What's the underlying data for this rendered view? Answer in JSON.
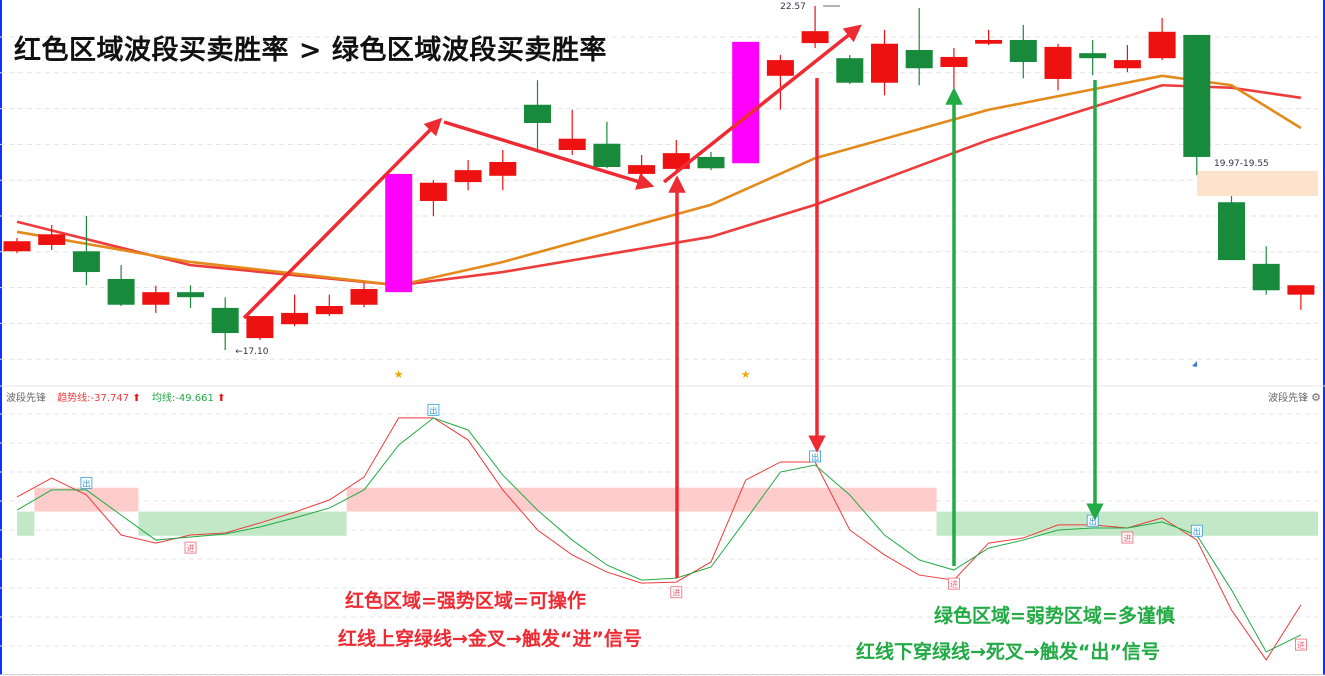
{
  "title": "红色区域波段买卖胜率 > 绿色区域波段买卖胜率",
  "colors": {
    "up": "#ee1111",
    "down": "#178a3c",
    "highlight": "#ff00ff",
    "ma_red": "#ee3b3b",
    "ma_orange": "#e38a1a",
    "zone_strong": "#ffcccc",
    "zone_weak": "#c2e8c8",
    "signal_out": "#3399dd",
    "signal_in": "#ee6677",
    "arrow_red": "#ee2a33",
    "arrow_green": "#22aa44",
    "range_box": "#fde3cc"
  },
  "chart_data": [
    {
      "type": "candlestick",
      "title": "",
      "price_labels": {
        "high": "22.57",
        "low": "17.10",
        "range": "19.97-19.55"
      },
      "candles": [
        {
          "o": 18.67,
          "h": 18.88,
          "l": 18.64,
          "c": 18.83
        },
        {
          "o": 18.77,
          "h": 19.09,
          "l": 18.69,
          "c": 18.94
        },
        {
          "o": 18.67,
          "h": 19.23,
          "l": 18.13,
          "c": 18.34
        },
        {
          "o": 18.23,
          "h": 18.45,
          "l": 17.8,
          "c": 17.82
        },
        {
          "o": 17.82,
          "h": 18.12,
          "l": 17.69,
          "c": 18.02
        },
        {
          "o": 18.02,
          "h": 18.13,
          "l": 17.77,
          "c": 17.94
        },
        {
          "o": 17.77,
          "h": 17.94,
          "l": 17.1,
          "c": 17.37
        },
        {
          "o": 17.29,
          "h": 17.64,
          "l": 17.26,
          "c": 17.64
        },
        {
          "o": 17.51,
          "h": 17.98,
          "l": 17.48,
          "c": 17.69
        },
        {
          "o": 17.67,
          "h": 17.98,
          "l": 17.64,
          "c": 17.8
        },
        {
          "o": 17.82,
          "h": 18.17,
          "l": 17.78,
          "c": 18.07
        },
        {
          "o": 18.02,
          "h": 19.9,
          "l": 18.02,
          "c": 19.9,
          "highlight": true
        },
        {
          "o": 19.47,
          "h": 19.8,
          "l": 19.23,
          "c": 19.76
        },
        {
          "o": 19.77,
          "h": 20.12,
          "l": 19.64,
          "c": 19.96
        },
        {
          "o": 19.87,
          "h": 20.28,
          "l": 19.64,
          "c": 20.09
        },
        {
          "o": 21.0,
          "h": 21.39,
          "l": 20.28,
          "c": 20.71
        },
        {
          "o": 20.28,
          "h": 20.92,
          "l": 20.2,
          "c": 20.46
        },
        {
          "o": 20.38,
          "h": 20.73,
          "l": 19.99,
          "c": 20.01
        },
        {
          "o": 19.9,
          "h": 20.2,
          "l": 19.84,
          "c": 20.04
        },
        {
          "o": 19.98,
          "h": 20.44,
          "l": 19.93,
          "c": 20.23
        },
        {
          "o": 20.17,
          "h": 20.25,
          "l": 19.96,
          "c": 19.99
        },
        {
          "o": 20.07,
          "h": 22.0,
          "l": 20.07,
          "c": 22.0,
          "highlight": true
        },
        {
          "o": 21.46,
          "h": 21.79,
          "l": 20.92,
          "c": 21.71
        },
        {
          "o": 21.98,
          "h": 22.57,
          "l": 21.9,
          "c": 22.17
        },
        {
          "o": 21.74,
          "h": 21.79,
          "l": 21.33,
          "c": 21.35
        },
        {
          "o": 21.35,
          "h": 22.19,
          "l": 21.15,
          "c": 21.97
        },
        {
          "o": 21.87,
          "h": 22.54,
          "l": 21.31,
          "c": 21.58
        },
        {
          "o": 21.6,
          "h": 21.9,
          "l": 21.23,
          "c": 21.76
        },
        {
          "o": 21.97,
          "h": 22.19,
          "l": 21.95,
          "c": 22.03
        },
        {
          "o": 22.03,
          "h": 22.27,
          "l": 21.42,
          "c": 21.68
        },
        {
          "o": 21.41,
          "h": 21.97,
          "l": 21.23,
          "c": 21.92
        },
        {
          "o": 21.82,
          "h": 22.03,
          "l": 21.47,
          "c": 21.74
        },
        {
          "o": 21.58,
          "h": 21.95,
          "l": 21.52,
          "c": 21.71
        },
        {
          "o": 21.74,
          "h": 22.38,
          "l": 21.71,
          "c": 22.16
        },
        {
          "o": 22.11,
          "h": 22.11,
          "l": 19.88,
          "c": 20.17
        },
        {
          "o": 19.45,
          "h": 19.55,
          "l": 18.53,
          "c": 18.53
        },
        {
          "o": 18.47,
          "h": 18.75,
          "l": 17.98,
          "c": 18.05
        },
        {
          "o": 17.98,
          "h": 18.13,
          "l": 17.74,
          "c": 18.13
        }
      ],
      "ma_red": [
        [
          0,
          19.14
        ],
        [
          5,
          18.45
        ],
        [
          11,
          18.13
        ],
        [
          14,
          18.34
        ],
        [
          20,
          18.9
        ],
        [
          23,
          19.41
        ],
        [
          28,
          20.44
        ],
        [
          33,
          21.31
        ],
        [
          35,
          21.27
        ],
        [
          37,
          21.11
        ]
      ],
      "ma_orange": [
        [
          0,
          18.98
        ],
        [
          5,
          18.5
        ],
        [
          11,
          18.13
        ],
        [
          14,
          18.5
        ],
        [
          20,
          19.41
        ],
        [
          23,
          20.15
        ],
        [
          28,
          20.92
        ],
        [
          33,
          21.46
        ],
        [
          35,
          21.31
        ],
        [
          37,
          20.63
        ]
      ],
      "star_markers": [
        11,
        21
      ],
      "grid": true
    },
    {
      "type": "line",
      "name": "波段先锋",
      "series": [
        {
          "name": "趋势线",
          "color": "#ee3b3b",
          "values": [
            5.1,
            12.6,
            5.9,
            -10.0,
            -13.2,
            -10.0,
            -9.2,
            -5.2,
            -0.9,
            3.9,
            13.0,
            36.5,
            36.5,
            27.7,
            7.9,
            -8.0,
            -17.9,
            -24.7,
            -29.1,
            -28.7,
            -20.7,
            11.8,
            19.0,
            19.0,
            -8.0,
            -17.9,
            -25.9,
            -27.9,
            -13.2,
            -11.2,
            -6.0,
            -6.0,
            -7.2,
            -3.2,
            -12.0,
            -39.8,
            -59.6,
            -37.747
          ]
        },
        {
          "name": "均线",
          "color": "#22aa44",
          "values": [
            -0.1,
            7.9,
            7.9,
            -2.1,
            -12.0,
            -10.8,
            -9.6,
            -6.8,
            -3.2,
            0.7,
            7.9,
            25.7,
            36.5,
            31.7,
            13.8,
            -0.1,
            -12.0,
            -21.9,
            -27.9,
            -27.1,
            -22.7,
            -4.0,
            15.0,
            17.8,
            5.9,
            -10.0,
            -19.9,
            -23.9,
            -15.2,
            -12.0,
            -8.0,
            -7.2,
            -7.2,
            -4.8,
            -10.0,
            -31.8,
            -56.4,
            -49.661
          ]
        }
      ],
      "zones": [
        {
          "type": "weak",
          "from": 0,
          "to": 0.5
        },
        {
          "type": "strong",
          "from": 0.5,
          "to": 3.5
        },
        {
          "type": "weak",
          "from": 3.5,
          "to": 9.5
        },
        {
          "type": "strong",
          "from": 9.5,
          "to": 26.5
        },
        {
          "type": "weak",
          "from": 26.5,
          "to": 37.5
        }
      ],
      "zone_bounds": {
        "strong": [
          -0.7,
          8.8
        ],
        "weak": [
          -10.3,
          -0.7
        ]
      },
      "signals": [
        {
          "label": "出",
          "index": 2,
          "value": 10.5
        },
        {
          "label": "进",
          "index": 5,
          "value": -15.2
        },
        {
          "label": "出",
          "index": 12,
          "value": 39.5
        },
        {
          "label": "进",
          "index": 19,
          "value": -32.9
        },
        {
          "label": "出",
          "index": 23,
          "value": 21.0
        },
        {
          "label": "进",
          "index": 27,
          "value": -29.5
        },
        {
          "label": "出",
          "index": 31,
          "value": -4.5
        },
        {
          "label": "进",
          "index": 32,
          "value": -11.2
        },
        {
          "label": "出",
          "index": 34,
          "value": -8.5
        },
        {
          "label": "进",
          "index": 37,
          "value": -53.7
        }
      ],
      "grid": true
    }
  ],
  "indicator_header": {
    "name": "波段先锋",
    "trend_label": "趋势线:-37.747",
    "avg_label": "均线:-49.661",
    "arrow_icon": "up-arrow-icon",
    "right_name": "波段先锋",
    "settings_icon": "gear-icon"
  },
  "annotations": {
    "strong_1": "红色区域=强势区域=可操作",
    "strong_2": "红线上穿绿线→金叉→触发“进”信号",
    "weak_1": "绿色区域=弱势区域=多谨慎",
    "weak_2": "红线下穿绿线→死叉→触发“出”信号"
  }
}
